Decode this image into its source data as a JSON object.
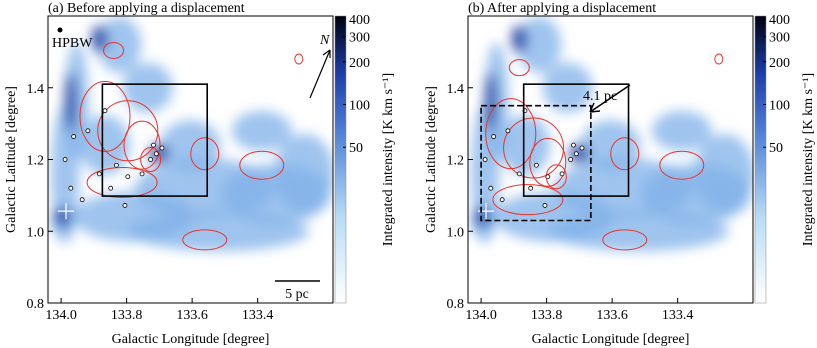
{
  "chart_data": [
    {
      "type": "map",
      "title": "(a) Before applying a displacement",
      "xlabel": "Galactic Longitude [degree]",
      "ylabel": "Galactic Latitude [degree]",
      "xlim": [
        134.04,
        133.17
      ],
      "xticks": [
        {
          "value": 134,
          "label": "134.0"
        },
        133.8,
        133.6,
        133.4
      ],
      "ylim": [
        0.8,
        1.6
      ],
      "yticks": [
        0.8,
        {
          "value": 1,
          "label": "1.0"
        },
        1.2,
        1.4
      ],
      "colorbar": {
        "label": "Integrated intensity  [K km s⁻¹]",
        "scale": "log",
        "lim": [
          4,
          420
        ],
        "ticks": [
          50,
          100,
          200,
          300,
          400
        ]
      },
      "boxes": [
        {
          "lon": [
            133.874,
            133.554
          ],
          "lat": [
            1.41,
            1.098
          ],
          "style": "solid"
        }
      ],
      "annotations": [
        "HPBW",
        "N",
        "5 pc"
      ]
    },
    {
      "type": "map",
      "title": "(b) After applying a displacement",
      "xlabel": "Galactic Longitude [degree]",
      "ylabel": "Galactic Latitude [degree]",
      "xlim": [
        134.04,
        133.17
      ],
      "xticks": [
        {
          "value": 134,
          "label": "134.0"
        },
        133.8,
        133.6,
        133.4
      ],
      "ylim": [
        0.8,
        1.6
      ],
      "yticks": [
        0.8,
        {
          "value": 1,
          "label": "1.0"
        },
        1.2,
        1.4
      ],
      "colorbar": {
        "label": "Integrated intensity  [K km s⁻¹]",
        "scale": "log",
        "lim": [
          4,
          420
        ],
        "ticks": [
          50,
          100,
          200,
          300,
          400
        ]
      },
      "boxes": [
        {
          "lon": [
            133.87,
            133.55
          ],
          "lat": [
            1.41,
            1.098
          ],
          "style": "solid"
        },
        {
          "lon": [
            134.0,
            133.665
          ],
          "lat": [
            1.35,
            1.03
          ],
          "style": "dashed"
        }
      ],
      "annotations": [
        "4.1 pc"
      ]
    }
  ]
}
